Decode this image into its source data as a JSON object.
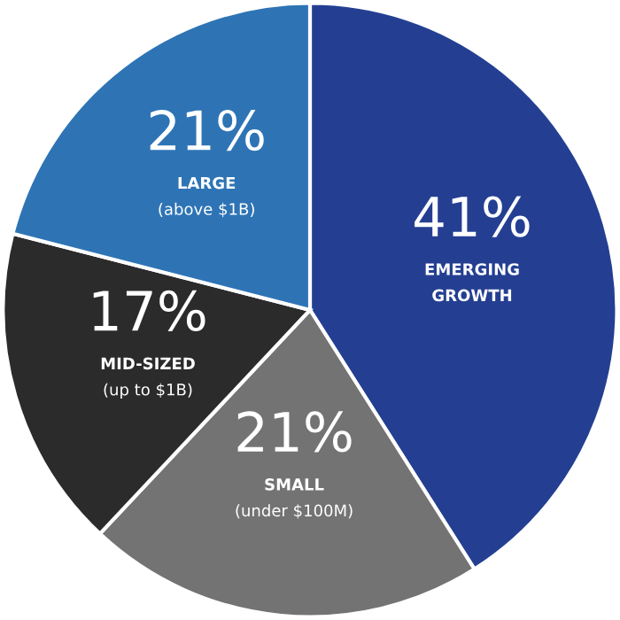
{
  "chart_data": {
    "type": "pie",
    "categories": [
      "EMERGING\nGROWTH",
      "SMALL\n(under $100M)",
      "MID-SIZED\n(up to $1B)",
      "LARGE\n(above $1B)"
    ],
    "values": [
      41,
      21,
      17,
      21
    ],
    "value_labels": [
      "41%",
      "21%",
      "17%",
      "21%"
    ],
    "colors": [
      "#243f92",
      "#737373",
      "#2b2b2b",
      "#2e74b5"
    ]
  }
}
